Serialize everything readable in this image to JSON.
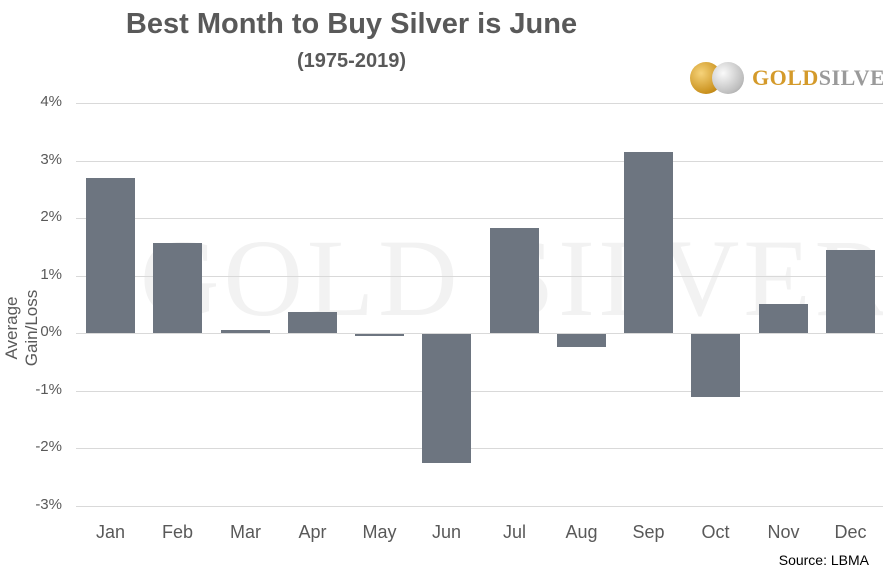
{
  "chart_data": {
    "type": "bar",
    "title": "Best Month to Buy Silver is June",
    "subtitle": "(1975-2019)",
    "xlabel": "",
    "ylabel": "Average Gain/Loss",
    "categories": [
      "Jan",
      "Feb",
      "Mar",
      "Apr",
      "May",
      "Jun",
      "Jul",
      "Aug",
      "Sep",
      "Oct",
      "Nov",
      "Dec"
    ],
    "values": [
      2.7,
      1.57,
      0.05,
      0.37,
      -0.02,
      -2.25,
      1.83,
      -0.23,
      3.15,
      -1.09,
      0.51,
      1.45
    ],
    "unit": "%",
    "ylim": [
      -3,
      4
    ],
    "yticks": [
      "4%",
      "3%",
      "2%",
      "1%",
      "0%",
      "-1%",
      "-2%",
      "-3%"
    ],
    "grid": true,
    "legend": null,
    "bar_color": "#6d7580",
    "source": "Source: LBMA"
  },
  "branding": {
    "logo_gold": "GOLD",
    "logo_silver": "SILVER",
    "watermark": "GOLD SILVER"
  }
}
